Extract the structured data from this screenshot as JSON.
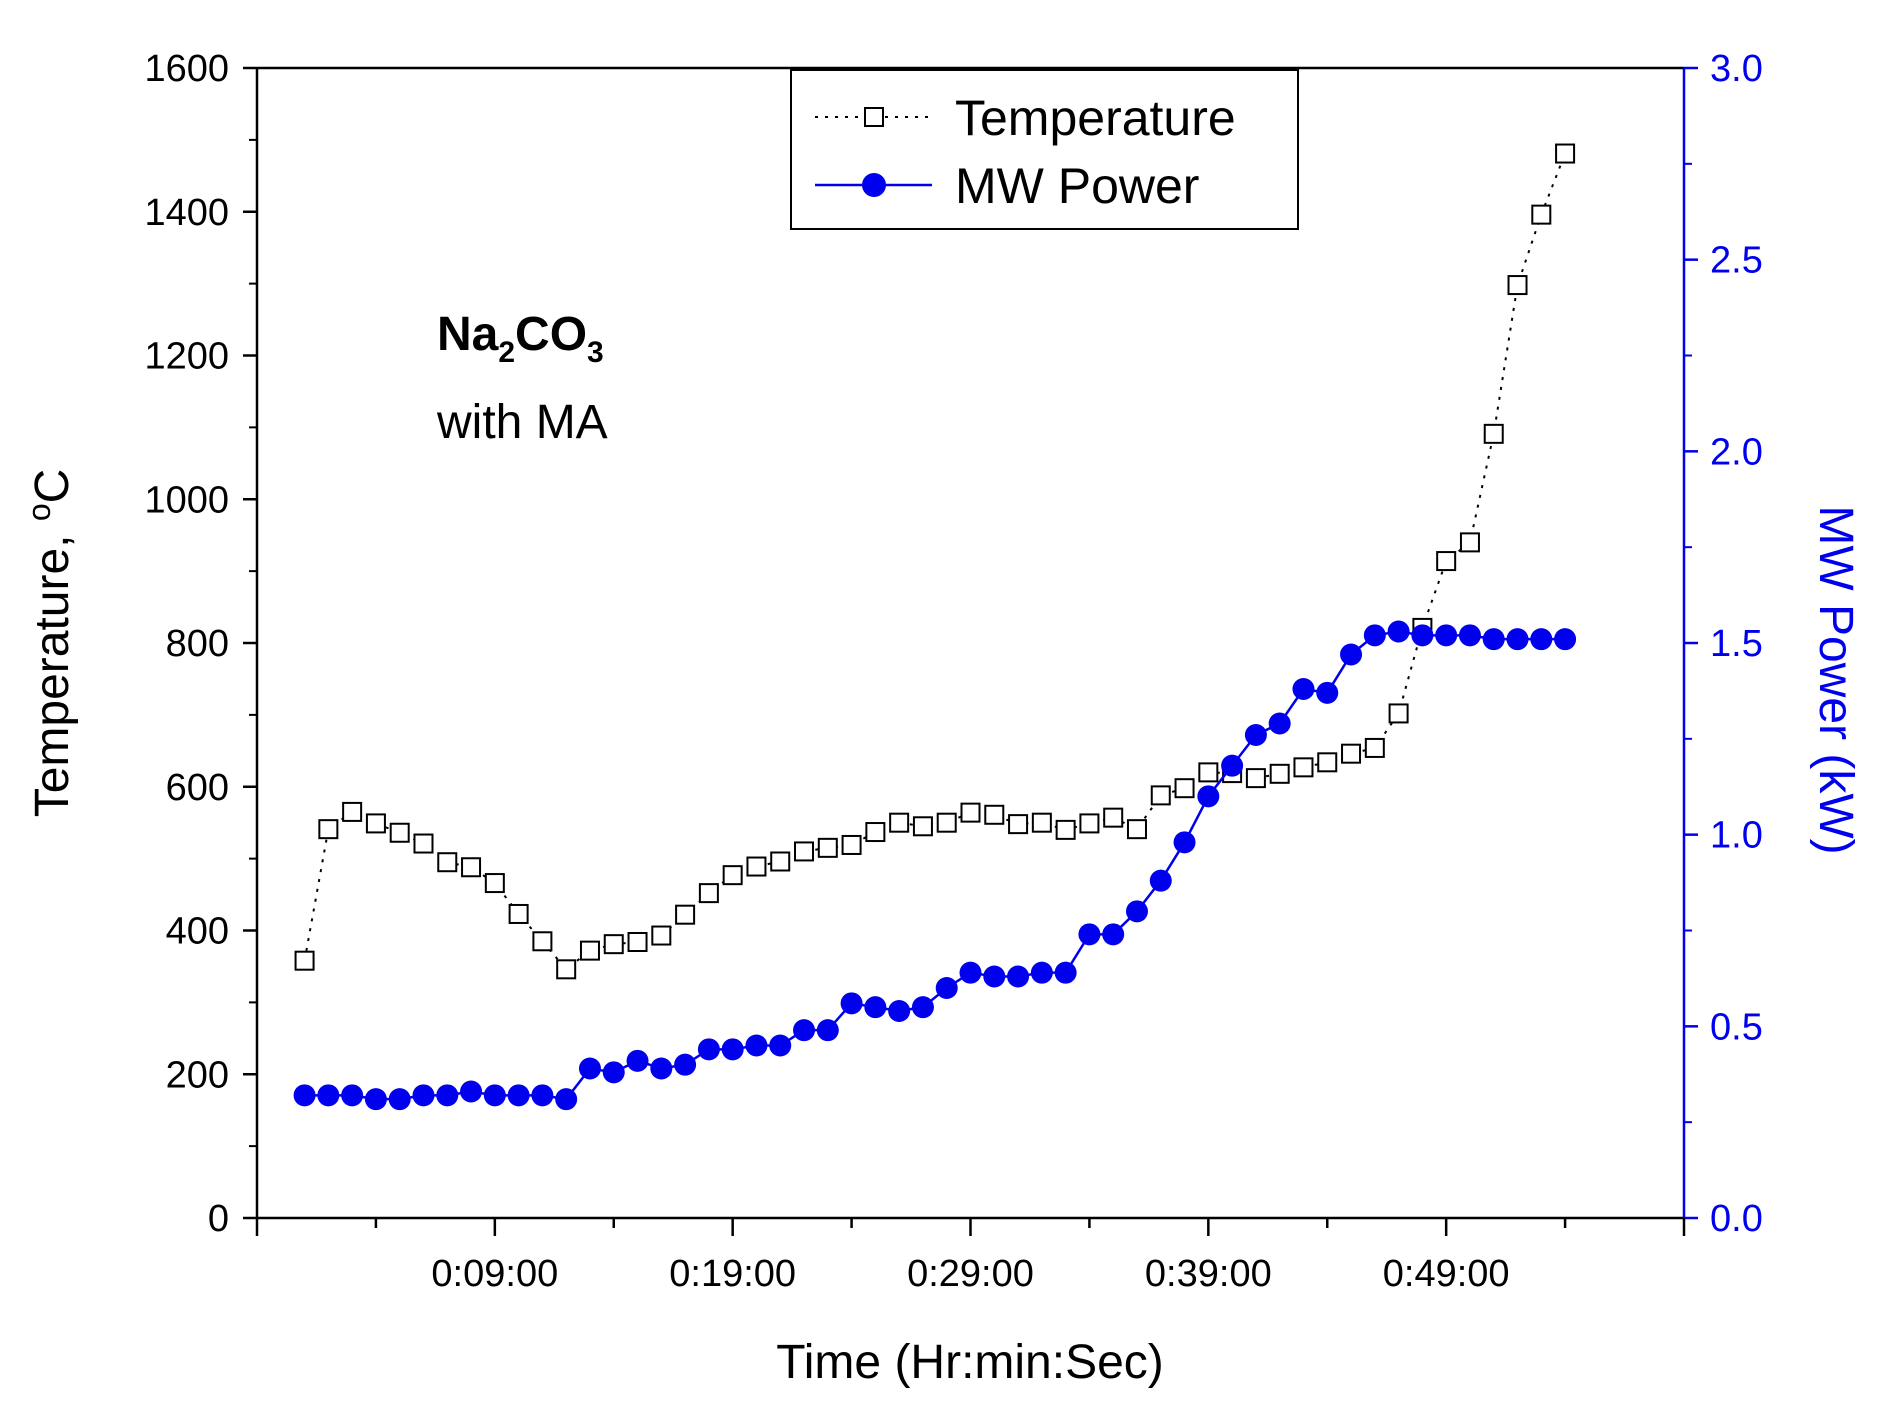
{
  "chart_data": {
    "type": "line",
    "title": "",
    "xlabel": "Time (Hr:min:Sec)",
    "ylabel": "Temperature, °C",
    "ylabel_parts": {
      "text": "Temperature, ",
      "sup": "o",
      "unit": "C"
    },
    "y2label": "MW Power (kW)",
    "x_tick_labels": [
      "0:09:00",
      "0:19:00",
      "0:29:00",
      "0:39:00",
      "0:49:00"
    ],
    "x_tick_positions_min": [
      9,
      19,
      29,
      39,
      49
    ],
    "xlim": [
      -1,
      59
    ],
    "ylim": [
      0,
      1600
    ],
    "y_ticks": [
      0,
      200,
      400,
      600,
      800,
      1000,
      1200,
      1400,
      1600
    ],
    "y_tick_labels": [
      "0",
      "200",
      "400",
      "600",
      "800",
      "1000",
      "1200",
      "1400",
      "1600"
    ],
    "y2lim": [
      0,
      3.0
    ],
    "y2_ticks": [
      0,
      0.5,
      1.0,
      1.5,
      2.0,
      2.5,
      3.0
    ],
    "y2_tick_labels": [
      "0.0",
      "0.5",
      "1.0",
      "1.5",
      "2.0",
      "2.5",
      "3.0"
    ],
    "grid": false,
    "legend_position": "top-center",
    "annotation": {
      "formula_parts": [
        "Na",
        "2",
        "CO",
        "3"
      ],
      "line2": "with MA"
    },
    "colors": {
      "temperature": "#000000",
      "power": "#0000ee",
      "right_axis": "#0000ee"
    },
    "series": [
      {
        "name": "Temperature",
        "axis": "left",
        "style": "dotted-line-open-square",
        "x": [
          1,
          2,
          3,
          4,
          5,
          6,
          7,
          8,
          9,
          10,
          11,
          12,
          13,
          14,
          15,
          16,
          17,
          18,
          19,
          20,
          21,
          22,
          23,
          24,
          25,
          26,
          27,
          28,
          29,
          30,
          31,
          32,
          33,
          34,
          35,
          36,
          37,
          38,
          39,
          40,
          41,
          42,
          43,
          44,
          45,
          46,
          47,
          48,
          49,
          50,
          51,
          52,
          53,
          54
        ],
        "values": [
          358,
          541,
          565,
          549,
          536,
          521,
          495,
          488,
          466,
          423,
          385,
          346,
          372,
          381,
          384,
          393,
          422,
          452,
          477,
          489,
          496,
          510,
          515,
          519,
          537,
          550,
          545,
          550,
          564,
          561,
          548,
          550,
          540,
          549,
          557,
          541,
          588,
          598,
          620,
          619,
          612,
          618,
          627,
          634,
          646,
          654,
          702,
          821,
          914,
          940,
          1091,
          1298,
          1396,
          1481
        ]
      },
      {
        "name": "MW Power",
        "axis": "right",
        "style": "solid-line-filled-circle",
        "x": [
          1,
          2,
          3,
          4,
          5,
          6,
          7,
          8,
          9,
          10,
          11,
          12,
          13,
          14,
          15,
          16,
          17,
          18,
          19,
          20,
          21,
          22,
          23,
          24,
          25,
          26,
          27,
          28,
          29,
          30,
          31,
          32,
          33,
          34,
          35,
          36,
          37,
          38,
          39,
          40,
          41,
          42,
          43,
          44,
          45,
          46,
          47,
          48,
          49,
          50,
          51,
          52,
          53,
          54
        ],
        "values": [
          0.32,
          0.32,
          0.32,
          0.31,
          0.31,
          0.32,
          0.32,
          0.33,
          0.32,
          0.32,
          0.32,
          0.31,
          0.39,
          0.38,
          0.41,
          0.39,
          0.4,
          0.44,
          0.44,
          0.45,
          0.45,
          0.49,
          0.49,
          0.56,
          0.55,
          0.54,
          0.55,
          0.6,
          0.64,
          0.63,
          0.63,
          0.64,
          0.64,
          0.74,
          0.74,
          0.8,
          0.88,
          0.98,
          1.1,
          1.18,
          1.26,
          1.29,
          1.38,
          1.37,
          1.47,
          1.52,
          1.53,
          1.52,
          1.52,
          1.52,
          1.51,
          1.51,
          1.51,
          1.51
        ]
      }
    ]
  }
}
